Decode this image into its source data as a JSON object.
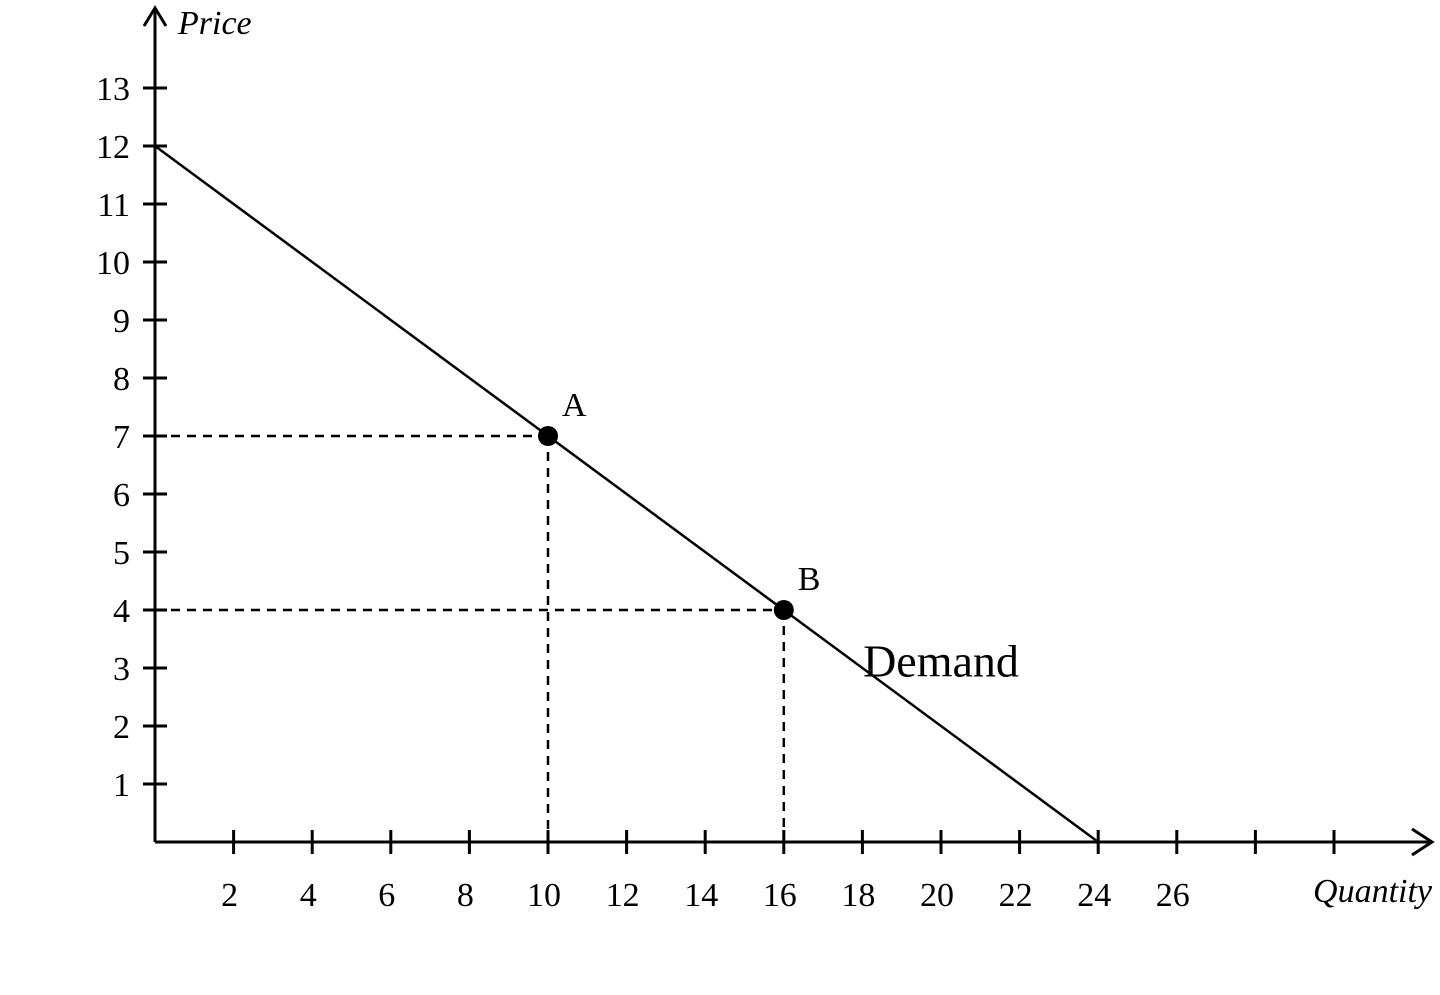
{
  "chart_data": {
    "type": "line",
    "xlabel": "Quantity",
    "ylabel": "Price",
    "x_ticks": [
      2,
      4,
      6,
      8,
      10,
      12,
      14,
      16,
      18,
      20,
      22,
      24,
      26,
      28,
      30
    ],
    "x_tick_labels": [
      "2",
      "4",
      "6",
      "8",
      "10",
      "12",
      "14",
      "16",
      "18",
      "20",
      "22",
      "24",
      "26",
      "",
      ""
    ],
    "y_ticks": [
      1,
      2,
      3,
      4,
      5,
      6,
      7,
      8,
      9,
      10,
      11,
      12,
      13
    ],
    "y_tick_labels": [
      "1",
      "2",
      "3",
      "4",
      "5",
      "6",
      "7",
      "8",
      "9",
      "10",
      "11",
      "12",
      "13"
    ],
    "xlim": [
      0,
      32
    ],
    "ylim": [
      0,
      14.4
    ],
    "series": [
      {
        "name": "Demand",
        "x": [
          0,
          24
        ],
        "y": [
          12,
          0
        ]
      }
    ],
    "points": [
      {
        "label": "A",
        "x": 10,
        "y": 7
      },
      {
        "label": "B",
        "x": 16,
        "y": 4
      }
    ],
    "grid": false,
    "legend": "none"
  }
}
